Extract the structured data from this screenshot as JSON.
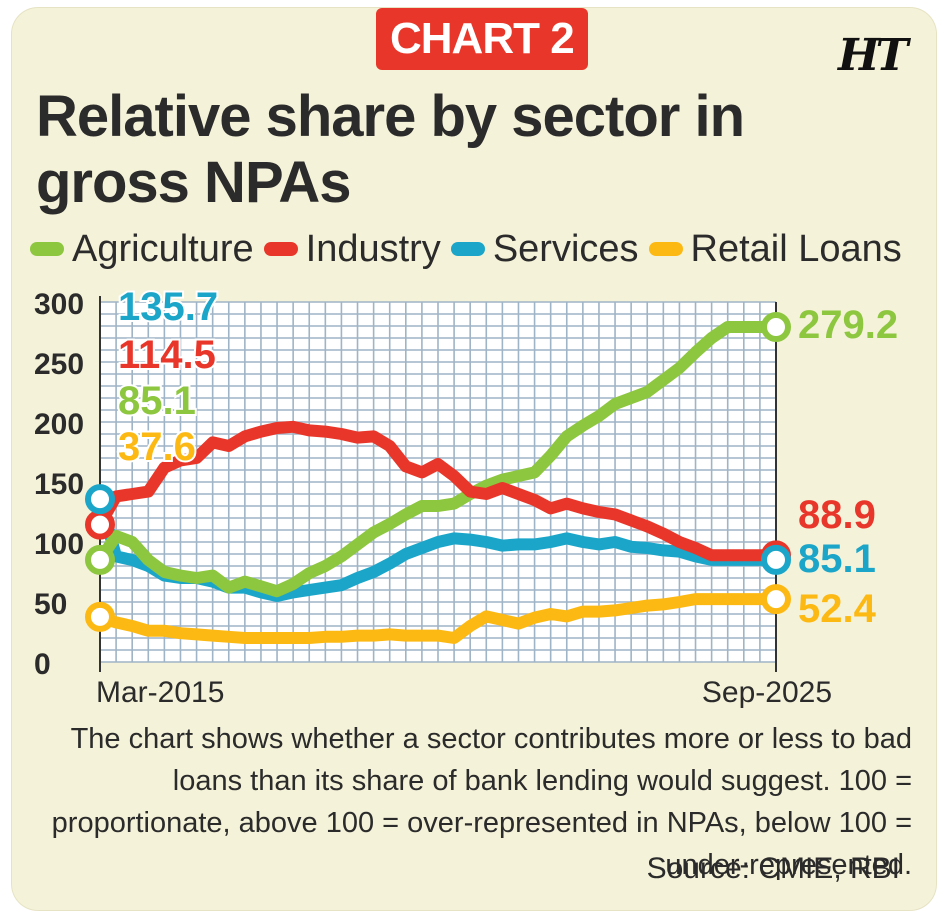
{
  "header": {
    "badge": "CHART 2",
    "logo": "HT",
    "title": "Relative share by sector in gross NPAs"
  },
  "chart_data": {
    "type": "line",
    "title": "Relative share by sector in gross NPAs",
    "xlabel": "",
    "ylabel": "",
    "ylim": [
      0,
      300
    ],
    "y_ticks": [
      0,
      50,
      100,
      150,
      200,
      250,
      300
    ],
    "x_tick_labels": [
      "Mar-2015",
      "Sep-2025"
    ],
    "n_points": 43,
    "grid": true,
    "legend_position": "top",
    "series": [
      {
        "name": "Agriculture",
        "color": "#8dc63f",
        "start_label": "85.1",
        "end_label": "279.2",
        "values": [
          85.1,
          105,
          100,
          85,
          75,
          72,
          70,
          72,
          62,
          67,
          63,
          59,
          65,
          74,
          80,
          88,
          98,
          108,
          115,
          123,
          130,
          130,
          132,
          140,
          147,
          152,
          155,
          158,
          172,
          188,
          197,
          205,
          215,
          220,
          225,
          235,
          245,
          258,
          270,
          279.2,
          279.2,
          279.2,
          279.2
        ]
      },
      {
        "name": "Industry",
        "color": "#e8372a",
        "start_label": "114.5",
        "end_label": "88.9",
        "values": [
          114.5,
          138,
          140,
          142,
          162,
          168,
          170,
          183,
          180,
          188,
          192,
          195,
          196,
          193,
          192,
          190,
          187,
          188,
          180,
          163,
          158,
          165,
          155,
          142,
          140,
          145,
          140,
          135,
          128,
          132,
          128,
          125,
          123,
          118,
          113,
          107,
          100,
          95,
          88.9,
          88.9,
          88.9,
          88.9,
          88.9
        ]
      },
      {
        "name": "Services",
        "color": "#1ba6c9",
        "start_label": "135.7",
        "end_label": "85.1",
        "values": [
          135.7,
          88,
          85,
          80,
          72,
          70,
          70,
          67,
          62,
          62,
          58,
          55,
          58,
          60,
          62,
          64,
          70,
          75,
          82,
          90,
          95,
          100,
          103,
          102,
          100,
          97,
          98,
          98,
          100,
          103,
          100,
          98,
          100,
          96,
          95,
          93,
          92,
          88,
          85.1,
          85.1,
          85.1,
          85.1,
          85.1
        ]
      },
      {
        "name": "Retail Loans",
        "color": "#fdb913",
        "start_label": "37.6",
        "end_label": "52.4",
        "values": [
          37.6,
          33,
          30,
          26,
          26,
          24,
          23,
          22,
          21,
          20,
          20,
          20,
          20,
          20,
          21,
          21,
          22,
          22,
          23,
          22,
          22,
          22,
          20,
          30,
          38,
          35,
          32,
          37,
          40,
          38,
          42,
          42,
          43,
          45,
          47,
          48,
          50,
          52.4,
          52.4,
          52.4,
          52.4,
          52.4,
          52.4
        ]
      }
    ]
  },
  "caption": "The chart shows whether a sector contributes more or less to bad loans than its share of bank lending would suggest. 100 = proportionate, above 100 = over-represented in NPAs, below 100 = under-represented.",
  "source": "Source: CMIE, RBI"
}
